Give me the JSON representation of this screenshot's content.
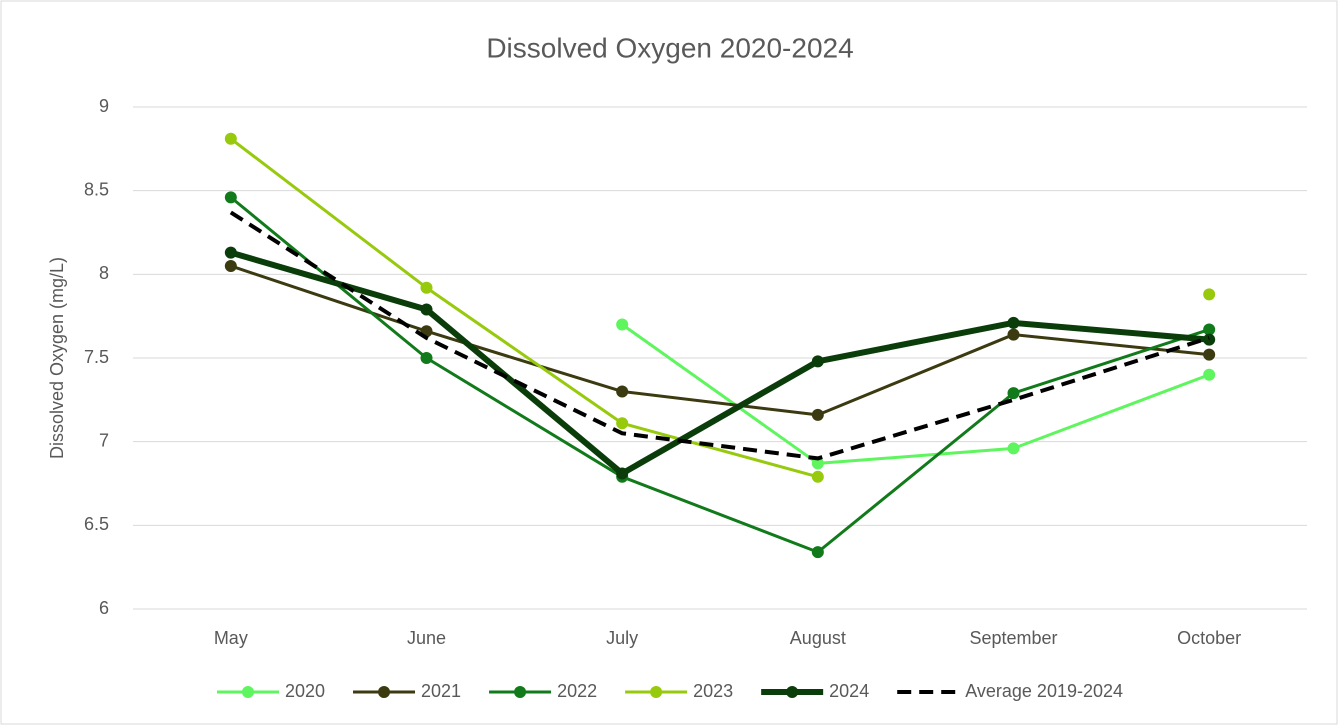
{
  "chart_data": {
    "type": "line",
    "title": "Dissolved Oxygen 2020-2024",
    "y_label": "Dissolved Oxygen (mg/L)",
    "categories": [
      "May",
      "June",
      "July",
      "August",
      "September",
      "October"
    ],
    "ylim": [
      6,
      9
    ],
    "yticks": [
      6,
      6.5,
      7,
      7.5,
      8,
      8.5,
      9
    ],
    "grid": true,
    "legend": "bottom",
    "series": [
      {
        "name": "2020",
        "color": "#5ef55e",
        "line_width": 3,
        "markers": true,
        "dashed": false,
        "values": [
          null,
          null,
          7.7,
          6.87,
          6.96,
          7.4
        ]
      },
      {
        "name": "2021",
        "color": "#3b3a10",
        "line_width": 3,
        "markers": true,
        "dashed": false,
        "values": [
          8.05,
          7.66,
          7.3,
          7.16,
          7.64,
          7.52
        ]
      },
      {
        "name": "2022",
        "color": "#117a1a",
        "line_width": 3,
        "markers": true,
        "dashed": false,
        "values": [
          8.46,
          7.5,
          6.79,
          6.34,
          7.29,
          7.67
        ]
      },
      {
        "name": "2023",
        "color": "#97c90c",
        "line_width": 3,
        "markers": true,
        "dashed": false,
        "values": [
          8.81,
          7.92,
          7.11,
          6.79,
          null,
          7.88
        ]
      },
      {
        "name": "2024",
        "color": "#0b3d0b",
        "line_width": 6,
        "markers": true,
        "dashed": false,
        "values": [
          8.13,
          7.79,
          6.81,
          7.48,
          7.71,
          7.61
        ]
      },
      {
        "name": "Average 2019-2024",
        "color": "#000000",
        "line_width": 4,
        "markers": false,
        "dashed": true,
        "values": [
          8.37,
          7.62,
          7.05,
          6.9,
          7.25,
          7.62
        ]
      }
    ]
  }
}
